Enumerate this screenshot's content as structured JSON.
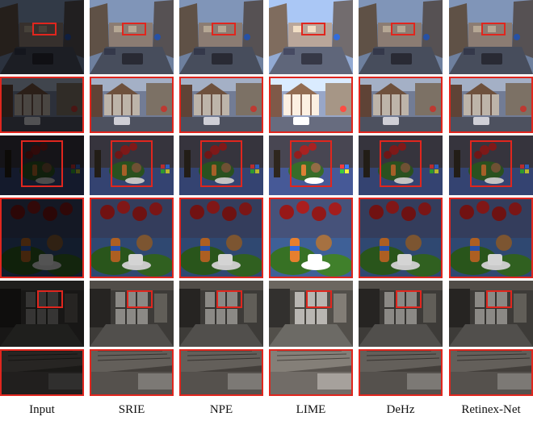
{
  "columns": [
    {
      "label": "Input",
      "tone": "dark"
    },
    {
      "label": "SRIE",
      "tone": "mid"
    },
    {
      "label": "NPE",
      "tone": "mid"
    },
    {
      "label": "LIME",
      "tone": "bright"
    },
    {
      "label": "DeHz",
      "tone": "mid"
    },
    {
      "label": "Retinex-Net",
      "tone": "mid"
    }
  ],
  "rows": [
    {
      "name": "street-scene",
      "kind": "full"
    },
    {
      "name": "street-zoom",
      "kind": "zoom"
    },
    {
      "name": "flowers-scene",
      "kind": "full"
    },
    {
      "name": "flowers-zoom",
      "kind": "zoom"
    },
    {
      "name": "room-scene",
      "kind": "full"
    },
    {
      "name": "room-zoom",
      "kind": "zoom"
    }
  ],
  "colors": {
    "highlight_box": "#e0261e"
  }
}
